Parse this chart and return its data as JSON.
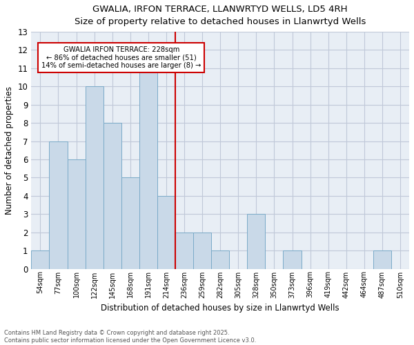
{
  "title1": "GWALIA, IRFON TERRACE, LLANWRTYD WELLS, LD5 4RH",
  "title2": "Size of property relative to detached houses in Llanwrtyd Wells",
  "xlabel": "Distribution of detached houses by size in Llanwrtyd Wells",
  "ylabel": "Number of detached properties",
  "categories": [
    "54sqm",
    "77sqm",
    "100sqm",
    "122sqm",
    "145sqm",
    "168sqm",
    "191sqm",
    "214sqm",
    "236sqm",
    "259sqm",
    "282sqm",
    "305sqm",
    "328sqm",
    "350sqm",
    "373sqm",
    "396sqm",
    "419sqm",
    "442sqm",
    "464sqm",
    "487sqm",
    "510sqm"
  ],
  "values": [
    1,
    7,
    6,
    10,
    8,
    5,
    11,
    4,
    2,
    2,
    1,
    0,
    3,
    0,
    1,
    0,
    0,
    0,
    0,
    1,
    0
  ],
  "bar_color": "#c9d9e8",
  "bar_edge_color": "#7aaac8",
  "reference_line_color": "#cc0000",
  "annotation_title": "GWALIA IRFON TERRACE: 228sqm",
  "annotation_line1": "← 86% of detached houses are smaller (51)",
  "annotation_line2": "14% of semi-detached houses are larger (8) →",
  "annotation_box_color": "#cc0000",
  "ylim": [
    0,
    13
  ],
  "yticks": [
    0,
    1,
    2,
    3,
    4,
    5,
    6,
    7,
    8,
    9,
    10,
    11,
    12,
    13
  ],
  "background_color": "#ffffff",
  "plot_bg_color": "#e8eef5",
  "grid_color": "#c0c8d8",
  "footer1": "Contains HM Land Registry data © Crown copyright and database right 2025.",
  "footer2": "Contains public sector information licensed under the Open Government Licence v3.0."
}
